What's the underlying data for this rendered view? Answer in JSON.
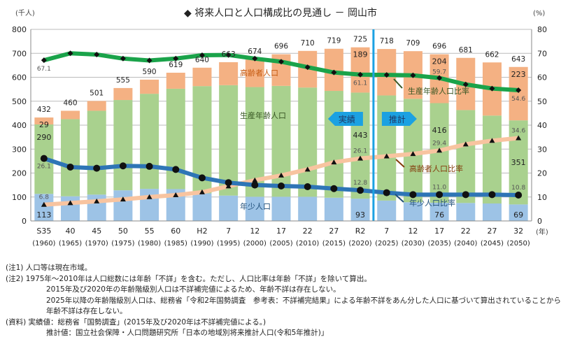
{
  "chart_data": {
    "type": "bar",
    "stacked": true,
    "title": "◆ 将来人口と人口構成比の見通し － 岡山市",
    "ylabel_left": "(千人)",
    "ylabel_right": "(%)",
    "xunit": "(年)",
    "ylim": [
      0,
      800
    ],
    "ylim_right": [
      0,
      80
    ],
    "yticks_left": [
      0,
      100,
      200,
      300,
      400,
      500,
      600,
      700,
      800
    ],
    "yticks_right": [
      0,
      10,
      20,
      30,
      40,
      50,
      60,
      70,
      80
    ],
    "grid": true,
    "categories": [
      "S35",
      "40",
      "45",
      "50",
      "55",
      "60",
      "H2",
      "7",
      "12",
      "17",
      "22",
      "27",
      "R2",
      "7",
      "12",
      "17",
      "22",
      "27",
      "32"
    ],
    "categories_year": [
      "(1960)",
      "(1965)",
      "(1970)",
      "(1975)",
      "(1980)",
      "(1985)",
      "(1990)",
      "(1995)",
      "(2000)",
      "(2005)",
      "(2010)",
      "(2015)",
      "(2020)",
      "(2025)",
      "(2030)",
      "(2035)",
      "(2040)",
      "(2045)",
      "(2050)"
    ],
    "totals": [
      432,
      460,
      501,
      555,
      590,
      619,
      640,
      663,
      674,
      696,
      710,
      719,
      725,
      718,
      709,
      696,
      681,
      662,
      643
    ],
    "series": [
      {
        "name": "年少人口",
        "axis": "left",
        "kind": "bar",
        "color": "#9dc3e6",
        "values": [
          113,
          103,
          110,
          128,
          134,
          133,
          115,
          106,
          101,
          101,
          101,
          97,
          93,
          85,
          78,
          76,
          75,
          73,
          69
        ],
        "labels": [
          "113",
          null,
          null,
          null,
          null,
          null,
          null,
          null,
          null,
          null,
          null,
          null,
          "93",
          null,
          null,
          "76",
          null,
          null,
          "69"
        ]
      },
      {
        "name": "生産年齢人口",
        "axis": "left",
        "kind": "bar",
        "color": "#a9d18e",
        "values": [
          290,
          322,
          350,
          377,
          397,
          419,
          448,
          461,
          458,
          463,
          456,
          446,
          443,
          439,
          432,
          416,
          388,
          367,
          351
        ],
        "labels": [
          "290",
          null,
          null,
          null,
          null,
          null,
          null,
          null,
          null,
          null,
          null,
          null,
          "443",
          null,
          null,
          "416",
          null,
          null,
          "351"
        ]
      },
      {
        "name": "高齢者人口",
        "axis": "left",
        "kind": "bar",
        "color": "#f4b183",
        "values": [
          29,
          35,
          41,
          50,
          59,
          67,
          77,
          96,
          115,
          132,
          153,
          176,
          189,
          194,
          199,
          204,
          218,
          222,
          223
        ],
        "labels": [
          "29",
          null,
          null,
          null,
          null,
          null,
          null,
          null,
          null,
          null,
          null,
          null,
          "189",
          null,
          null,
          "204",
          null,
          null,
          "223"
        ]
      },
      {
        "name": "生産年齢人口比率",
        "axis": "right",
        "kind": "line",
        "color": "#1aa34a",
        "marker": "diamond",
        "values": [
          67.1,
          70.0,
          69.5,
          67.8,
          67.0,
          67.8,
          69.2,
          69.3,
          67.8,
          66.5,
          64.2,
          62.0,
          61.1,
          61.0,
          60.8,
          59.7,
          57.0,
          55.3,
          54.6
        ],
        "labels": [
          "67.1",
          null,
          null,
          null,
          null,
          null,
          null,
          null,
          null,
          null,
          null,
          null,
          "61.1",
          null,
          null,
          "59.7",
          null,
          null,
          "54.6"
        ]
      },
      {
        "name": "高齢者人口比率",
        "axis": "right",
        "kind": "line",
        "color": "#f8c4a0",
        "marker": "triangle",
        "values": [
          6.8,
          7.5,
          8.2,
          9.0,
          10.0,
          10.8,
          12.0,
          14.5,
          17.0,
          19.0,
          21.5,
          24.5,
          26.1,
          27.0,
          28.0,
          29.4,
          32.0,
          33.5,
          34.6
        ],
        "labels": [
          "6.8",
          null,
          null,
          null,
          null,
          null,
          null,
          null,
          null,
          null,
          null,
          null,
          "26.1",
          null,
          null,
          "29.4",
          null,
          null,
          "34.6"
        ]
      },
      {
        "name": "年少人口比率",
        "axis": "right",
        "kind": "line",
        "color": "#2e75b6",
        "marker": "circle",
        "values": [
          26.1,
          22.5,
          22.0,
          23.0,
          22.8,
          21.5,
          18.0,
          16.0,
          15.0,
          14.6,
          14.3,
          13.5,
          12.8,
          11.8,
          11.0,
          11.0,
          11.0,
          11.0,
          10.8
        ],
        "labels": [
          "26.1",
          null,
          null,
          null,
          null,
          null,
          null,
          null,
          null,
          null,
          null,
          null,
          "12.8",
          null,
          null,
          "11.0",
          null,
          null,
          "10.8"
        ]
      }
    ],
    "annotations": {
      "actual": "実績",
      "projection": "推計",
      "divider_after": "R2"
    }
  },
  "notes": [
    "(注1) 人口等は現在市域。",
    "(注2) 1975年～2010年は人口総数には年齢「不詳」を含む。ただし、人口比率は年齢「不詳」を除いて算出。",
    "2015年及び2020年の年齢階級別人口は不詳補完値によるため、年齢不詳は存在しない。",
    "2025年以降の年齢階級別人口は、総務省「令和2年国勢調査　参考表：不詳補完結果」による年齢不詳をあん分した人口に基づいて算出されていることから、",
    "年齢不詳は存在しない。",
    "(資料) 実績値：総務省「国勢調査」(2015年及び2020年は不詳補完値による。)",
    "推計値：国立社会保障・人口問題研究所「日本の地域別将来推計人口(令和5年推計)」"
  ]
}
